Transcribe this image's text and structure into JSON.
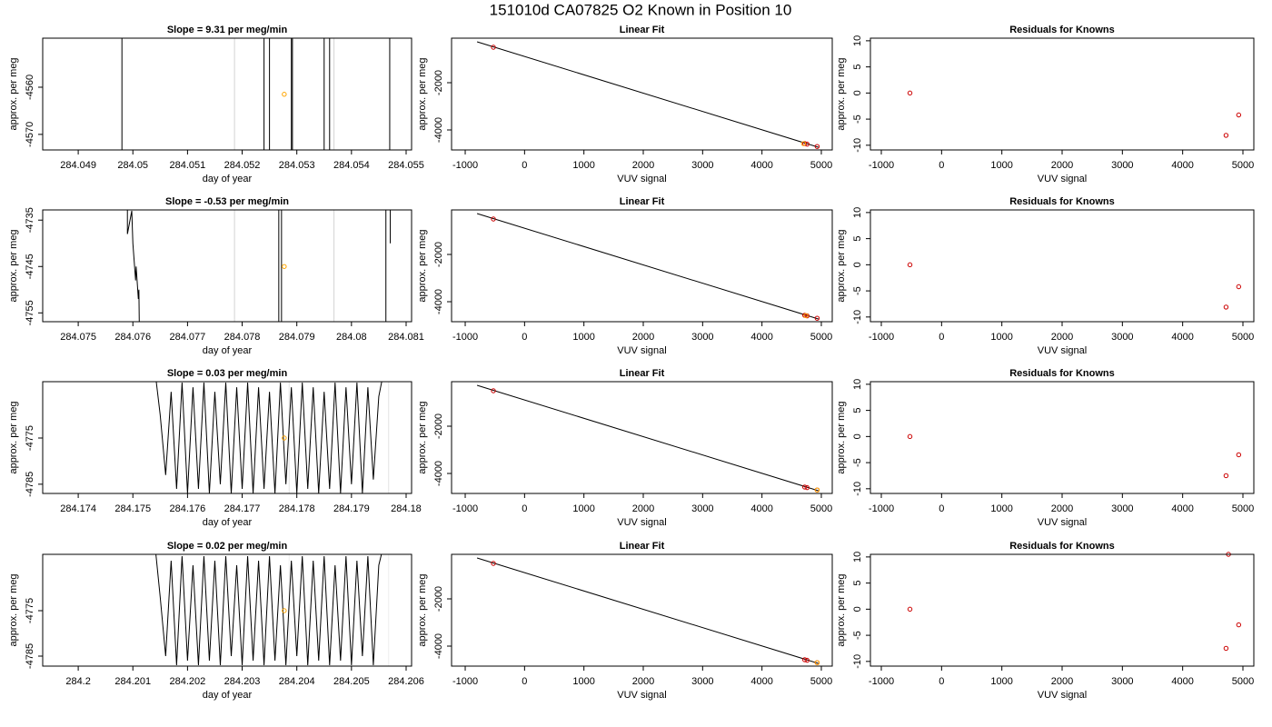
{
  "title": "151010d     CA07825   O2 Known in Position  10",
  "chart_data": [
    {
      "type": "line",
      "title": "Slope =  9.31  per meg/min",
      "xlabel": "day of year",
      "ylabel": "approx. per meg",
      "xlim": [
        284.04835,
        284.0551
      ],
      "ylim": [
        -4573.3,
        -4549.6
      ],
      "xticks": [
        284.049,
        284.05,
        284.051,
        284.052,
        284.053,
        284.054,
        284.055
      ],
      "yticks": [
        -4570,
        -4560
      ],
      "series": [
        {
          "mode": "vline",
          "color": "#d3d3d3",
          "x": [
            284.05186,
            284.05368
          ]
        },
        {
          "mode": "line",
          "color": "#000000",
          "x": [
            284.0498,
            284.0498,
            284.0524,
            284.0524,
            284.0525,
            284.0525,
            284.0529,
            284.0529,
            284.05292,
            284.05292,
            284.0535,
            284.0535,
            284.0536,
            284.0536,
            284.0547,
            284.0547
          ],
          "values": [
            -4540,
            -4580,
            -4580,
            -4540,
            -4540,
            -4580,
            -4580,
            -4540,
            -4540,
            -4580,
            -4580,
            -4540,
            -4540,
            -4580,
            -4580,
            -4540
          ]
        },
        {
          "mode": "points",
          "color": "#ffa500",
          "x": [
            284.05277
          ],
          "values": [
            -4561.5
          ]
        }
      ]
    },
    {
      "type": "scatter",
      "title": "Linear Fit",
      "xlabel": "VUV signal",
      "ylabel": "approx. per meg",
      "xlim": [
        -1230,
        5184
      ],
      "ylim": [
        -4846,
        -115
      ],
      "xticks": [
        -1000,
        0,
        1000,
        2000,
        3000,
        4000,
        5000
      ],
      "yticks": [
        -4000,
        -2000
      ],
      "series": [
        {
          "mode": "line",
          "color": "#000000",
          "x": [
            -800,
            4950
          ],
          "values": [
            -270,
            -4730
          ]
        },
        {
          "mode": "points",
          "color": "#cc0000",
          "x": [
            -525,
            4720,
            4760,
            4930
          ],
          "values": [
            -500,
            -4575,
            -4600,
            -4700
          ]
        },
        {
          "mode": "points",
          "color": "#ffa500",
          "x": [
            4700
          ],
          "values": [
            -4580
          ]
        }
      ]
    },
    {
      "type": "scatter",
      "title": "Residuals for Knowns",
      "xlabel": "VUV signal",
      "ylabel": "approx. per meg",
      "xlim": [
        -1181,
        5181
      ],
      "ylim": [
        -10.9,
        10.5
      ],
      "xticks": [
        -1000,
        0,
        1000,
        2000,
        3000,
        4000,
        5000
      ],
      "yticks": [
        -10,
        -5,
        0,
        5,
        10
      ],
      "series": [
        {
          "mode": "points",
          "color": "#cc0000",
          "x": [
            -525,
            4720,
            4930
          ],
          "values": [
            0,
            -8.1,
            -4.2
          ]
        }
      ]
    },
    {
      "type": "line",
      "title": "Slope =  -0.53  per meg/min",
      "xlabel": "day of year",
      "ylabel": "approx. per meg",
      "xlim": [
        284.07435,
        284.0811
      ],
      "ylim": [
        -4756.9,
        -4732.8
      ],
      "xticks": [
        284.075,
        284.076,
        284.077,
        284.078,
        284.079,
        284.08,
        284.081
      ],
      "yticks": [
        -4755,
        -4745,
        -4735
      ],
      "series": [
        {
          "mode": "vline",
          "color": "#d3d3d3",
          "x": [
            284.07786,
            284.07968
          ]
        },
        {
          "mode": "line",
          "color": "#000000",
          "x": [
            284.0759,
            284.0759,
            284.07598,
            284.076,
            284.07605,
            284.07606,
            284.0761,
            284.07611,
            284.07612,
            284.07867,
            284.07867,
            284.07872,
            284.07872,
            284.08063,
            284.08063,
            284.08071,
            284.08071
          ],
          "values": [
            -4720,
            -4738,
            -4733,
            -4740,
            -4748,
            -4745,
            -4752,
            -4750,
            -4760,
            -4760,
            -4720,
            -4720,
            -4760,
            -4760,
            -4720,
            -4720,
            -4740
          ]
        },
        {
          "mode": "points",
          "color": "#ffa500",
          "x": [
            284.07877
          ],
          "values": [
            -4745
          ]
        }
      ]
    },
    {
      "type": "scatter",
      "title": "Linear Fit",
      "xlabel": "VUV signal",
      "ylabel": "approx. per meg",
      "xlim": [
        -1230,
        5184
      ],
      "ylim": [
        -4846,
        -115
      ],
      "xticks": [
        -1000,
        0,
        1000,
        2000,
        3000,
        4000,
        5000
      ],
      "yticks": [
        -4000,
        -2000
      ],
      "series": [
        {
          "mode": "line",
          "color": "#000000",
          "x": [
            -800,
            4950
          ],
          "values": [
            -270,
            -4730
          ]
        },
        {
          "mode": "points",
          "color": "#cc0000",
          "x": [
            -525,
            4720,
            4760,
            4930
          ],
          "values": [
            -500,
            -4575,
            -4600,
            -4700
          ]
        },
        {
          "mode": "points",
          "color": "#ffa500",
          "x": [
            4740
          ],
          "values": [
            -4590
          ]
        }
      ]
    },
    {
      "type": "scatter",
      "title": "Residuals for Knowns",
      "xlabel": "VUV signal",
      "ylabel": "approx. per meg",
      "xlim": [
        -1181,
        5181
      ],
      "ylim": [
        -10.9,
        10.5
      ],
      "xticks": [
        -1000,
        0,
        1000,
        2000,
        3000,
        4000,
        5000
      ],
      "yticks": [
        -10,
        -5,
        0,
        5,
        10
      ],
      "series": [
        {
          "mode": "points",
          "color": "#cc0000",
          "x": [
            -525,
            4720,
            4930
          ],
          "values": [
            0,
            -8.1,
            -4.2
          ]
        }
      ]
    },
    {
      "type": "line",
      "title": "Slope =  0.03  per meg/min",
      "xlabel": "day of year",
      "ylabel": "approx. per meg",
      "xlim": [
        284.17335,
        284.1801
      ],
      "ylim": [
        -4787,
        -4762.8
      ],
      "xticks": [
        284.174,
        284.175,
        284.176,
        284.177,
        284.178,
        284.179,
        284.18
      ],
      "yticks": [
        -4785,
        -4775
      ],
      "series": [
        {
          "mode": "vline",
          "color": "#e4e4e4",
          "x": [
            284.17786,
            284.17968
          ]
        },
        {
          "mode": "line",
          "color": "#000000",
          "x": [
            284.1754,
            284.1755,
            284.1756,
            284.1757,
            284.1758,
            284.1759,
            284.176,
            284.1761,
            284.1762,
            284.1763,
            284.1764,
            284.1765,
            284.1766,
            284.1767,
            284.1768,
            284.1769,
            284.177,
            284.1771,
            284.1772,
            284.1773,
            284.1774,
            284.1775,
            284.1776,
            284.1777,
            284.1778,
            284.1779,
            284.178,
            284.1781,
            284.1782,
            284.1783,
            284.1784,
            284.1785,
            284.1786,
            284.1787,
            284.1788,
            284.1789,
            284.179,
            284.1791,
            284.1792,
            284.1793,
            284.1794,
            284.1795,
            284.1796
          ],
          "values": [
            -4760,
            -4770,
            -4783,
            -4765,
            -4786,
            -4763,
            -4787,
            -4764,
            -4786,
            -4763,
            -4787,
            -4765,
            -4785,
            -4763,
            -4787,
            -4764,
            -4786,
            -4763,
            -4787,
            -4764,
            -4786,
            -4765,
            -4787,
            -4763,
            -4785,
            -4764,
            -4787,
            -4763,
            -4786,
            -4764,
            -4787,
            -4765,
            -4786,
            -4763,
            -4787,
            -4764,
            -4785,
            -4763,
            -4787,
            -4764,
            -4784,
            -4766,
            -4760
          ]
        },
        {
          "mode": "points",
          "color": "#ffa500",
          "x": [
            284.17777
          ],
          "values": [
            -4775
          ]
        }
      ]
    },
    {
      "type": "scatter",
      "title": "Linear Fit",
      "xlabel": "VUV signal",
      "ylabel": "approx. per meg",
      "xlim": [
        -1230,
        5184
      ],
      "ylim": [
        -4846,
        -115
      ],
      "xticks": [
        -1000,
        0,
        1000,
        2000,
        3000,
        4000,
        5000
      ],
      "yticks": [
        -4000,
        -2000
      ],
      "series": [
        {
          "mode": "line",
          "color": "#000000",
          "x": [
            -800,
            4950
          ],
          "values": [
            -270,
            -4730
          ]
        },
        {
          "mode": "points",
          "color": "#cc0000",
          "x": [
            -525,
            4720,
            4760,
            4930
          ],
          "values": [
            -500,
            -4575,
            -4600,
            -4700
          ]
        },
        {
          "mode": "points",
          "color": "#ffa500",
          "x": [
            4930
          ],
          "values": [
            -4700
          ]
        }
      ]
    },
    {
      "type": "scatter",
      "title": "Residuals for Knowns",
      "xlabel": "VUV signal",
      "ylabel": "approx. per meg",
      "xlim": [
        -1181,
        5181
      ],
      "ylim": [
        -10.9,
        10.5
      ],
      "xticks": [
        -1000,
        0,
        1000,
        2000,
        3000,
        4000,
        5000
      ],
      "yticks": [
        -10,
        -5,
        0,
        5,
        10
      ],
      "series": [
        {
          "mode": "points",
          "color": "#cc0000",
          "x": [
            -525,
            4720,
            4930
          ],
          "values": [
            0,
            -7.5,
            -3.5
          ]
        }
      ]
    },
    {
      "type": "line",
      "title": "Slope =  0.02  per meg/min",
      "xlabel": "day of year",
      "ylabel": "approx. per meg",
      "xlim": [
        284.19935,
        284.2061
      ],
      "ylim": [
        -4787.2,
        -4762.6
      ],
      "xticks": [
        284.2,
        284.201,
        284.202,
        284.203,
        284.204,
        284.205,
        284.206
      ],
      "yticks": [
        -4785,
        -4775
      ],
      "series": [
        {
          "mode": "vline",
          "color": "#eeeeee",
          "x": [
            284.20386,
            284.20568
          ]
        },
        {
          "mode": "line",
          "color": "#000000",
          "x": [
            284.2014,
            284.2015,
            284.2016,
            284.2017,
            284.2018,
            284.2019,
            284.202,
            284.2021,
            284.2022,
            284.2023,
            284.2024,
            284.2025,
            284.2026,
            284.2027,
            284.2028,
            284.2029,
            284.203,
            284.2031,
            284.2032,
            284.2033,
            284.2034,
            284.2035,
            284.2036,
            284.2037,
            284.2038,
            284.2039,
            284.204,
            284.2041,
            284.2042,
            284.2043,
            284.2044,
            284.2045,
            284.2046,
            284.2047,
            284.2048,
            284.2049,
            284.205,
            284.2051,
            284.2052,
            284.2053,
            284.2054,
            284.2055,
            284.2056
          ],
          "values": [
            -4760,
            -4772,
            -4785,
            -4764,
            -4787,
            -4763,
            -4786,
            -4765,
            -4787,
            -4763,
            -4786,
            -4764,
            -4787,
            -4763,
            -4785,
            -4765,
            -4787,
            -4763,
            -4786,
            -4764,
            -4787,
            -4763,
            -4786,
            -4765,
            -4787,
            -4764,
            -4785,
            -4763,
            -4787,
            -4764,
            -4786,
            -4763,
            -4787,
            -4765,
            -4786,
            -4763,
            -4787,
            -4764,
            -4785,
            -4763,
            -4787,
            -4765,
            -4760
          ]
        },
        {
          "mode": "points",
          "color": "#ffa500",
          "x": [
            284.20377
          ],
          "values": [
            -4775
          ]
        }
      ]
    },
    {
      "type": "scatter",
      "title": "Linear Fit",
      "xlabel": "VUV signal",
      "ylabel": "approx. per meg",
      "xlim": [
        -1230,
        5184
      ],
      "ylim": [
        -4846,
        -115
      ],
      "xticks": [
        -1000,
        0,
        1000,
        2000,
        3000,
        4000,
        5000
      ],
      "yticks": [
        -4000,
        -2000
      ],
      "series": [
        {
          "mode": "line",
          "color": "#000000",
          "x": [
            -800,
            4950
          ],
          "values": [
            -270,
            -4730
          ]
        },
        {
          "mode": "points",
          "color": "#cc0000",
          "x": [
            -525,
            4720,
            4760,
            4930
          ],
          "values": [
            -500,
            -4575,
            -4600,
            -4700
          ]
        },
        {
          "mode": "points",
          "color": "#ffa500",
          "x": [
            4930
          ],
          "values": [
            -4700
          ]
        }
      ]
    },
    {
      "type": "scatter",
      "title": "Residuals for Knowns",
      "xlabel": "VUV signal",
      "ylabel": "approx. per meg",
      "xlim": [
        -1181,
        5181
      ],
      "ylim": [
        -10.9,
        10.5
      ],
      "xticks": [
        -1000,
        0,
        1000,
        2000,
        3000,
        4000,
        5000
      ],
      "yticks": [
        -10,
        -5,
        0,
        5,
        10
      ],
      "series": [
        {
          "mode": "points",
          "color": "#cc0000",
          "x": [
            -525,
            4720,
            4760,
            4930
          ],
          "values": [
            0,
            -7.5,
            10.5,
            -3
          ]
        }
      ]
    }
  ]
}
